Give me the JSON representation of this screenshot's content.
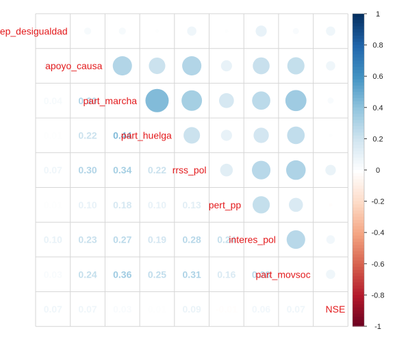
{
  "chart_data": {
    "type": "heatmap",
    "method": "mixed: upper=circle, lower=number",
    "variables": [
      "percep_desigualdad",
      "apoyo_causa",
      "part_marcha",
      "part_huelga",
      "rrss_pol",
      "pert_pp",
      "interes_pol",
      "part_movsoc",
      "NSE"
    ],
    "variable_labels": [
      "percep_desigualdad",
      "apoyo_causa",
      "part_marcha",
      "part_huelga",
      "rrss_pol",
      "pert_pp",
      "interes_pol",
      "part_movsoc",
      "NSE"
    ],
    "matrix": [
      [
        1.0,
        0.04,
        0.04,
        0.01,
        0.07,
        0.01,
        0.1,
        0.03,
        0.07
      ],
      [
        0.04,
        1.0,
        0.3,
        0.22,
        0.3,
        0.1,
        0.23,
        0.24,
        0.07
      ],
      [
        0.04,
        0.3,
        1.0,
        0.44,
        0.34,
        0.18,
        0.27,
        0.36,
        0.03
      ],
      [
        0.01,
        0.22,
        0.44,
        1.0,
        0.22,
        0.1,
        0.19,
        0.25,
        0.01
      ],
      [
        0.07,
        0.3,
        0.34,
        0.22,
        1.0,
        0.13,
        0.28,
        0.31,
        0.09
      ],
      [
        0.01,
        0.1,
        0.18,
        0.1,
        0.13,
        1.0,
        0.24,
        0.16,
        -0.01
      ],
      [
        0.1,
        0.23,
        0.27,
        0.19,
        0.28,
        0.24,
        1.0,
        0.28,
        0.06
      ],
      [
        0.03,
        0.24,
        0.36,
        0.25,
        0.31,
        0.16,
        0.28,
        1.0,
        0.07
      ],
      [
        0.07,
        0.07,
        0.03,
        0.01,
        0.09,
        -0.01,
        0.06,
        0.07,
        1.0
      ]
    ],
    "colorbar": {
      "range": [
        -1,
        1
      ],
      "ticks": [
        "1",
        "0.8",
        "0.6",
        "0.4",
        "0.2",
        "0",
        "-0.2",
        "-0.4",
        "-0.6",
        "-0.8",
        "-1"
      ]
    },
    "label_color": "#e31a1c"
  }
}
